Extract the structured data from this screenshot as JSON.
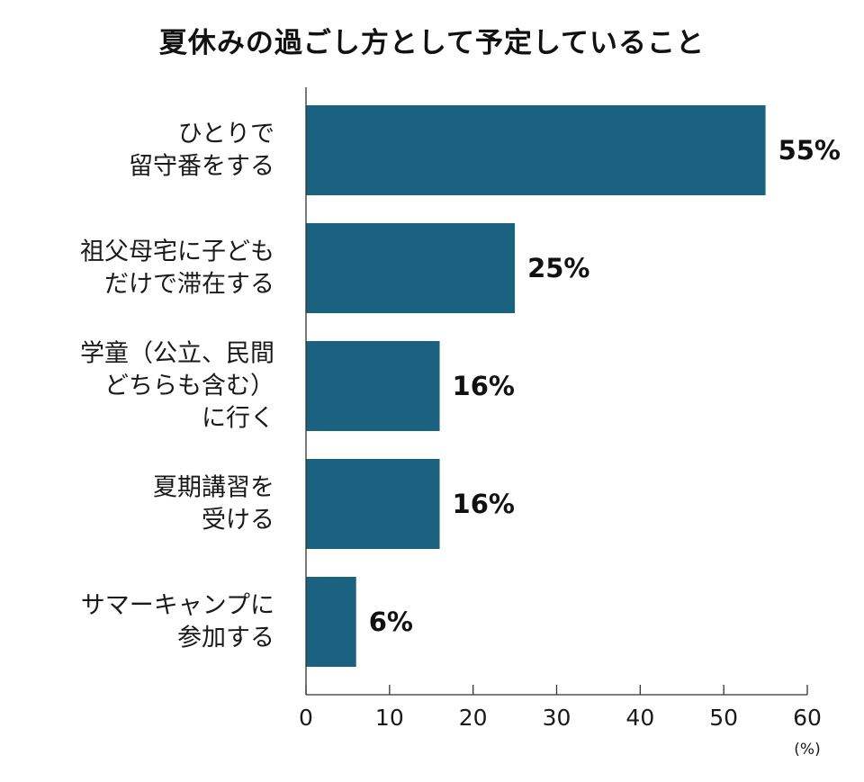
{
  "chart_data": {
    "type": "bar",
    "orientation": "horizontal",
    "title": "夏休みの過ごし方として予定していること",
    "categories": [
      [
        "ひとりで",
        "留守番をする"
      ],
      [
        "祖父母宅に子ども",
        "だけで滞在する"
      ],
      [
        "学童（公立、民間",
        "どちらも含む）",
        "に行く"
      ],
      [
        "夏期講習を",
        "受ける"
      ],
      [
        "サマーキャンプに",
        "参加する"
      ]
    ],
    "values": [
      55,
      25,
      16,
      16,
      6
    ],
    "value_labels": [
      "55%",
      "25%",
      "16%",
      "16%",
      "6%"
    ],
    "xlim": [
      0,
      60
    ],
    "x_ticks": [
      0,
      10,
      20,
      30,
      40,
      50,
      60
    ],
    "x_unit": "(%)",
    "bar_color": "#1b6180",
    "grid": false
  }
}
